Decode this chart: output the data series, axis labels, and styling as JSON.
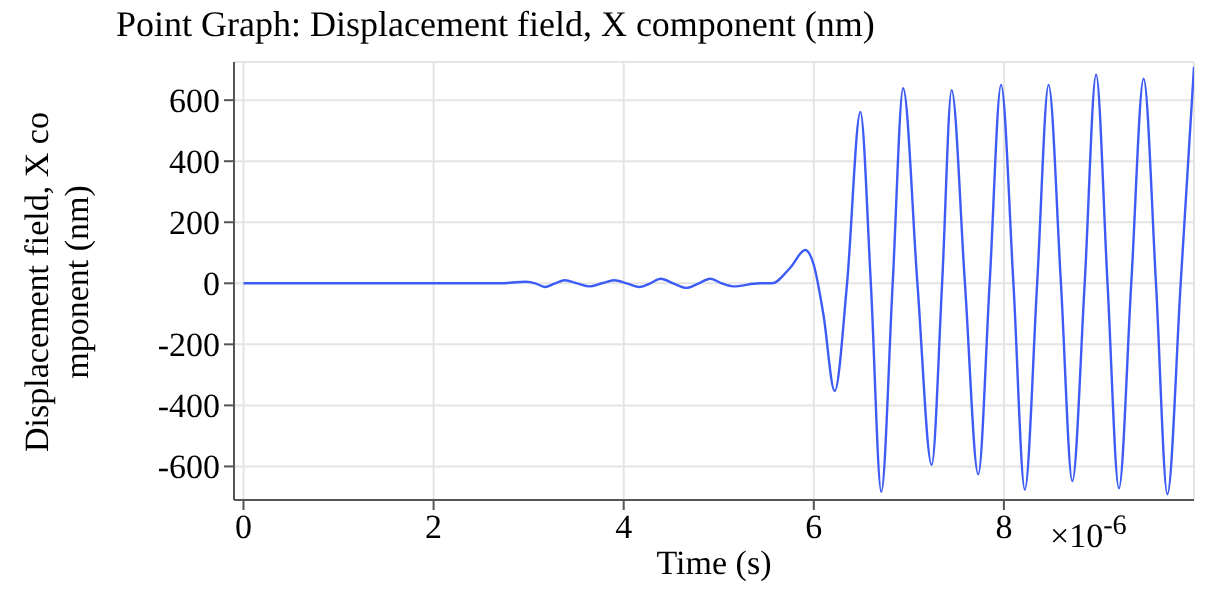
{
  "chart_data": {
    "type": "line",
    "title": "Point Graph: Displacement field, X component (nm)",
    "xlabel": "Time (s)",
    "ylabel": "Displacement field, X component (nm)",
    "annotations": [
      "×10$^{-6}$"
    ],
    "x": [
      0,
      1,
      2,
      2.69,
      2.97,
      3.07,
      3.17,
      3.28,
      3.38,
      3.51,
      3.64,
      3.77,
      3.9,
      4.03,
      4.17,
      4.28,
      4.39,
      4.52,
      4.66,
      4.79,
      4.91,
      5.03,
      5.15,
      5.43,
      5.56,
      5.75,
      5.91,
      6.0,
      6.1,
      6.22,
      6.35,
      6.49,
      6.6,
      6.71,
      6.83,
      6.94,
      7.09,
      7.24,
      7.35,
      7.45,
      7.59,
      7.73,
      7.85,
      7.97,
      8.1,
      8.22,
      8.35,
      8.47,
      8.6,
      8.72,
      8.85,
      8.97,
      9.09,
      9.21,
      9.34,
      9.47,
      9.6,
      9.72,
      9.86,
      10.0
    ],
    "series": [
      {
        "color": "#3d5cf5",
        "values": [
          0,
          0,
          0,
          0,
          5,
          0,
          -12,
          0,
          10,
          0,
          -10,
          0,
          10,
          0,
          -12,
          0,
          15,
          0,
          -15,
          0,
          15,
          0,
          -10,
          0,
          0,
          50,
          109,
          60,
          -100,
          -353,
          0,
          561,
          0,
          -683,
          0,
          639,
          0,
          -595,
          0,
          633,
          0,
          -626,
          0,
          650,
          0,
          -676,
          0,
          650,
          0,
          -648,
          0,
          683,
          0,
          -672,
          0,
          670,
          0,
          -691,
          0,
          709
        ]
      }
    ],
    "xlim": [
      -0.1,
      10.0
    ],
    "ylim": [
      -710,
      725
    ],
    "xticks": [
      0,
      2,
      4,
      6,
      8
    ],
    "yticks": [
      -600,
      -400,
      -200,
      0,
      200,
      400,
      600
    ],
    "grid": true,
    "marker": "none",
    "line_style": "solid"
  }
}
